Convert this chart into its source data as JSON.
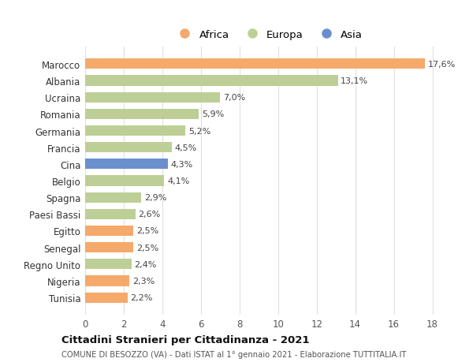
{
  "categories": [
    "Tunisia",
    "Nigeria",
    "Regno Unito",
    "Senegal",
    "Egitto",
    "Paesi Bassi",
    "Spagna",
    "Belgio",
    "Cina",
    "Francia",
    "Germania",
    "Romania",
    "Ucraina",
    "Albania",
    "Marocco"
  ],
  "values": [
    2.2,
    2.3,
    2.4,
    2.5,
    2.5,
    2.6,
    2.9,
    4.1,
    4.3,
    4.5,
    5.2,
    5.9,
    7.0,
    13.1,
    17.6
  ],
  "labels": [
    "2,2%",
    "2,3%",
    "2,4%",
    "2,5%",
    "2,5%",
    "2,6%",
    "2,9%",
    "4,1%",
    "4,3%",
    "4,5%",
    "5,2%",
    "5,9%",
    "7,0%",
    "13,1%",
    "17,6%"
  ],
  "continents": [
    "Africa",
    "Africa",
    "Europa",
    "Africa",
    "Africa",
    "Europa",
    "Europa",
    "Europa",
    "Asia",
    "Europa",
    "Europa",
    "Europa",
    "Europa",
    "Europa",
    "Africa"
  ],
  "bar_colors": [
    "#F5A96B",
    "#F5A96B",
    "#BDCF96",
    "#F5A96B",
    "#F5A96B",
    "#BDCF96",
    "#BDCF96",
    "#BDCF96",
    "#6B8FCC",
    "#BDCF96",
    "#BDCF96",
    "#BDCF96",
    "#BDCF96",
    "#BDCF96",
    "#F5A96B"
  ],
  "xlim": [
    0,
    19
  ],
  "xticks": [
    0,
    2,
    4,
    6,
    8,
    10,
    12,
    14,
    16,
    18
  ],
  "title": "Cittadini Stranieri per Cittadinanza - 2021",
  "subtitle": "COMUNE DI BESOZZO (VA) - Dati ISTAT al 1° gennaio 2021 - Elaborazione TUTTITALIA.IT",
  "legend_labels": [
    "Africa",
    "Europa",
    "Asia"
  ],
  "legend_colors": [
    "#F5A96B",
    "#BDCF96",
    "#6B8FCC"
  ],
  "background_color": "#ffffff",
  "axes_bg_color": "#ffffff"
}
